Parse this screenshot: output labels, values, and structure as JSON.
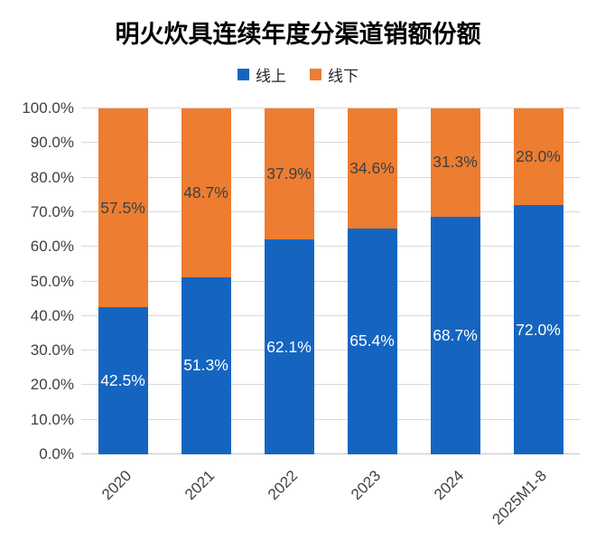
{
  "title": "明火炊具连续年度分渠道销额份额",
  "legend": {
    "items": [
      {
        "label": "线上",
        "color": "#1565c0"
      },
      {
        "label": "线下",
        "color": "#ed7d31"
      }
    ]
  },
  "colors": {
    "online_blue": "#1565c0",
    "offline_orange": "#ed7d31",
    "axis_text": "#404040",
    "gridline": "#d9d9d9",
    "online_label_text": "#ffffff",
    "offline_label_text": "#404040"
  },
  "chart_data": {
    "type": "bar",
    "stacked": true,
    "title": "明火炊具连续年度分渠道销额份额",
    "categories": [
      "2020",
      "2021",
      "2022",
      "2023",
      "2024",
      "2025M1-8"
    ],
    "series": [
      {
        "name": "线上",
        "color": "#1565c0",
        "label_color": "#ffffff",
        "values": [
          42.5,
          51.3,
          62.1,
          65.4,
          68.7,
          72.0
        ]
      },
      {
        "name": "线下",
        "color": "#ed7d31",
        "label_color": "#404040",
        "values": [
          57.5,
          48.7,
          37.9,
          34.6,
          31.3,
          28.0
        ]
      }
    ],
    "data_labels": {
      "线上": [
        "42.5%",
        "51.3%",
        "62.1%",
        "65.4%",
        "68.7%",
        "72.0%"
      ],
      "线下": [
        "57.5%",
        "48.7%",
        "37.9%",
        "34.6%",
        "31.3%",
        "28.0%"
      ]
    },
    "xlabel": "",
    "ylabel": "",
    "ylim": [
      0,
      100
    ],
    "ytick_step": 10,
    "ytick_labels": [
      "0.0%",
      "10.0%",
      "20.0%",
      "30.0%",
      "40.0%",
      "50.0%",
      "60.0%",
      "70.0%",
      "80.0%",
      "90.0%",
      "100.0%"
    ],
    "grid": true,
    "legend_position": "top-center",
    "x_tick_rotation_deg": 45
  }
}
